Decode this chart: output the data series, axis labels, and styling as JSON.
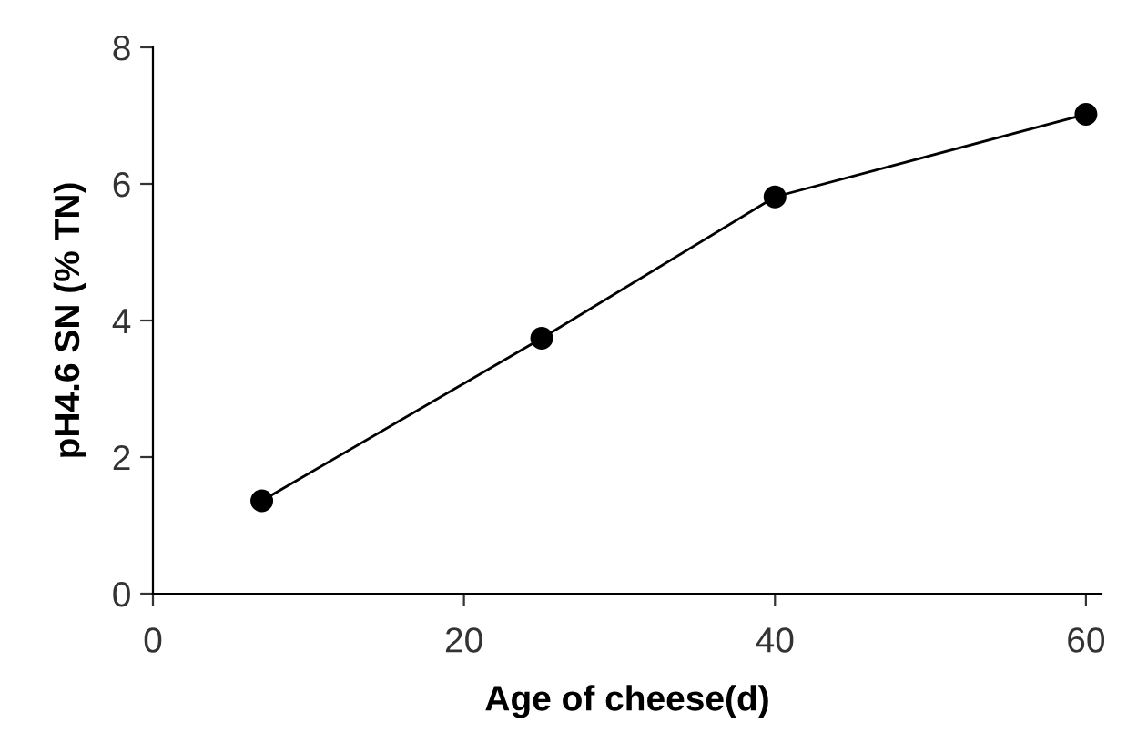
{
  "chart_data": {
    "type": "line",
    "xlabel": "Age of cheese(d)",
    "ylabel": "pH4.6 SN (% TN)",
    "x": [
      7,
      25,
      40,
      60
    ],
    "series": [
      {
        "color": "#000000",
        "values": [
          1.36,
          3.74,
          5.81,
          7.02
        ]
      }
    ],
    "xlim": [
      0,
      61
    ],
    "xticks": [
      0,
      20,
      40,
      60
    ],
    "ylim": [
      0,
      8
    ],
    "yticks": [
      0,
      2,
      4,
      6,
      8
    ],
    "marker": "circle",
    "line_style": "solid",
    "grid": false,
    "legend": false
  }
}
